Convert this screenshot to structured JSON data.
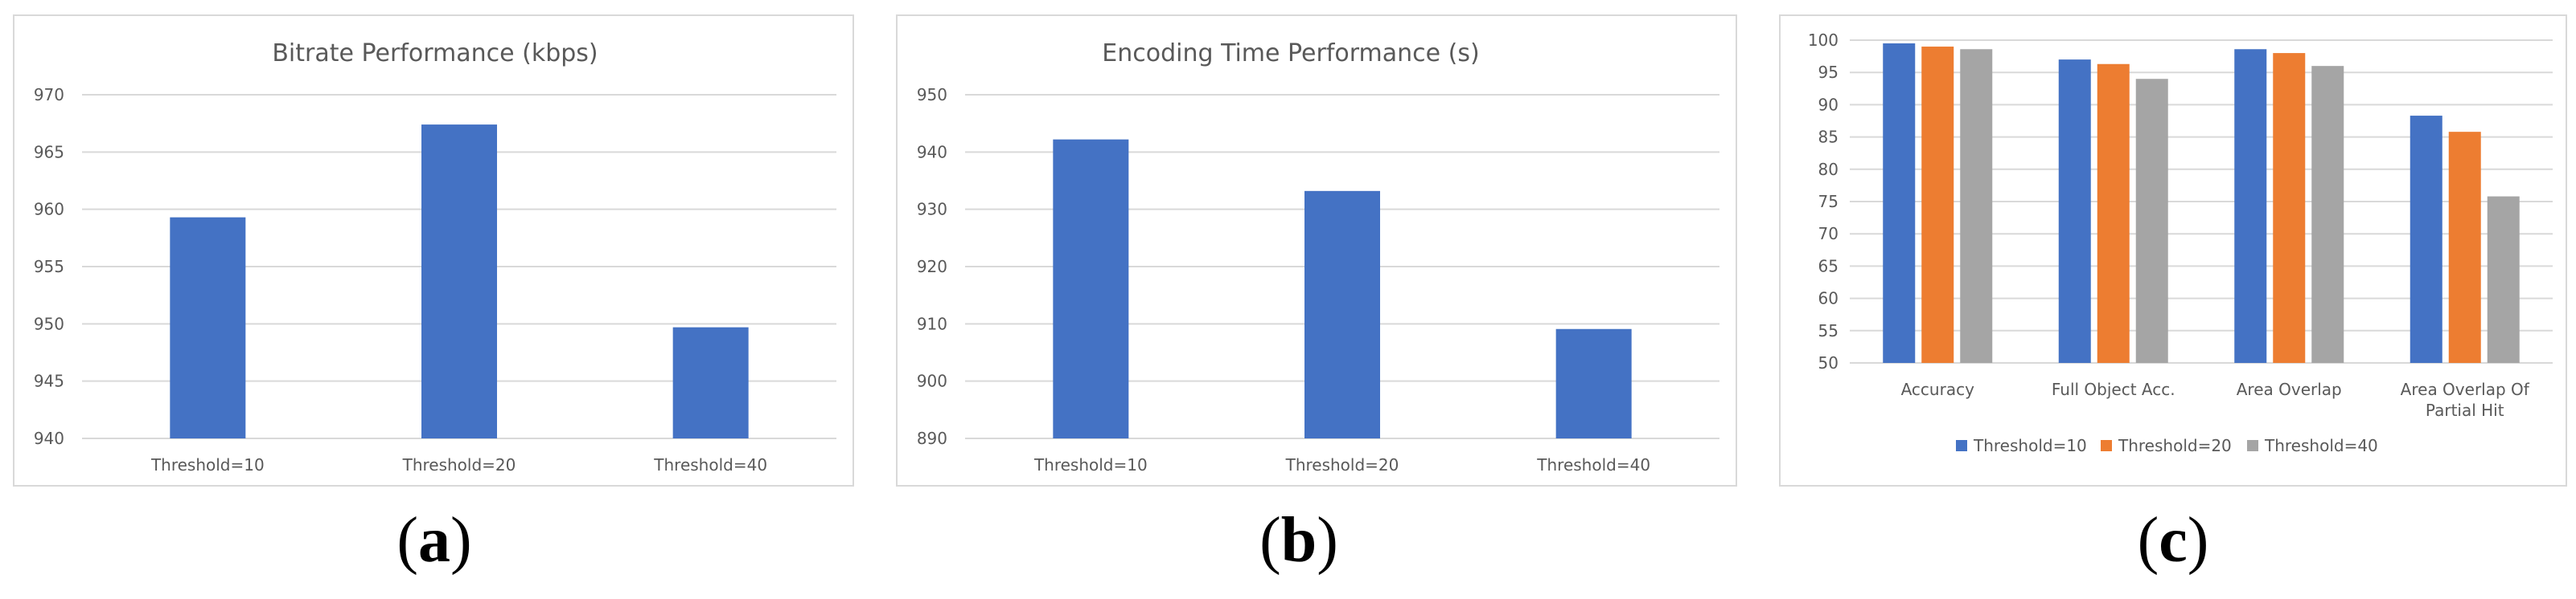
{
  "captions": [
    "a",
    "b",
    "c"
  ],
  "colors": {
    "blue": "#4472c4",
    "orange": "#ed7d31",
    "gray": "#a5a5a5",
    "grid": "#d9d9d9",
    "text": "#595959"
  },
  "chart_data": [
    {
      "type": "bar",
      "title": "Bitrate Performance (kbps)",
      "categories": [
        "Threshold=10",
        "Threshold=20",
        "Threshold=40"
      ],
      "values": [
        959.3,
        967.4,
        949.7
      ],
      "yticks": [
        940,
        945,
        950,
        955,
        960,
        965,
        970
      ],
      "ylim": [
        940,
        970
      ],
      "grid": true
    },
    {
      "type": "bar",
      "title": "Encoding Time Performance (s)",
      "categories": [
        "Threshold=10",
        "Threshold=20",
        "Threshold=40"
      ],
      "values": [
        942.2,
        933.2,
        909.1
      ],
      "yticks": [
        890,
        900,
        910,
        920,
        930,
        940,
        950
      ],
      "ylim": [
        890,
        950
      ],
      "grid": true
    },
    {
      "type": "bar",
      "title": "",
      "categories": [
        "Accuracy",
        "Full Object Acc.",
        "Area Overlap",
        "Area Overlap Of Partial Hit"
      ],
      "series": [
        {
          "name": "Threshold=10",
          "values": [
            99.5,
            97.0,
            98.6,
            88.3
          ]
        },
        {
          "name": "Threshold=20",
          "values": [
            99.0,
            96.3,
            98.0,
            85.8
          ]
        },
        {
          "name": "Threshold=40",
          "values": [
            98.6,
            94.0,
            96.0,
            75.8
          ]
        }
      ],
      "yticks": [
        50,
        55,
        60,
        65,
        70,
        75,
        80,
        85,
        90,
        95,
        100
      ],
      "ylim": [
        50,
        100
      ],
      "legend": "bottom",
      "grid": true
    }
  ]
}
